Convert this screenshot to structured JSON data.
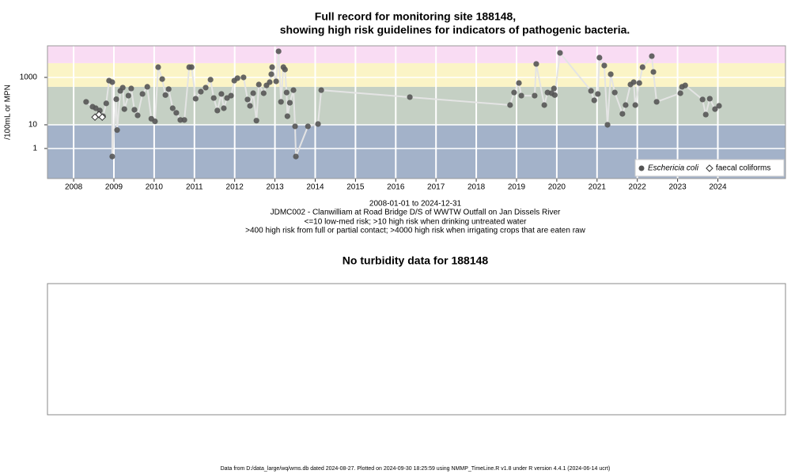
{
  "chart_data": [
    {
      "type": "scatter",
      "title": "Full record for monitoring site 188148,",
      "subtitle": "showing high risk guidelines for indicators of pathogenic bacteria.",
      "y_label": "/100mL or MPN",
      "notes": [
        "2008-01-01 to 2024-12-31",
        "JDMC002 - Clanwilliam at Road Bridge D/S of WWTW Outfall on Jan Dissels River",
        "<=10 low-med risk; >10 high risk when drinking untreated water",
        ">400 high risk from full or partial contact; >4000 high risk when irrigating crops that are eaten raw"
      ],
      "xlim": [
        2007.35,
        2025.68
      ],
      "xticks": [
        2008,
        2009,
        2010,
        2011,
        2012,
        2013,
        2014,
        2015,
        2016,
        2017,
        2018,
        2019,
        2020,
        2021,
        2022,
        2023,
        2024
      ],
      "ylim": [
        0.054,
        21500
      ],
      "yticks": [
        1,
        10,
        1000
      ],
      "y_log_scale": true,
      "grid": true,
      "band_thresholds": [
        10,
        400,
        4000
      ],
      "band_colors": [
        "#a3b2c9",
        "#c5d0c4",
        "#fbf4c6",
        "#f9dcf3"
      ],
      "legend_position": "bottom-right",
      "series": [
        {
          "name": "Eschericia coli",
          "color": "#555555",
          "line_color": "#e4e4e4",
          "marker": "filled-circle",
          "x": [
            2008.31,
            2008.47,
            2008.55,
            2008.65,
            2008.73,
            2008.81,
            2008.88,
            2008.96,
            2008.96,
            2009.06,
            2009.08,
            2009.16,
            2009.22,
            2009.26,
            2009.36,
            2009.43,
            2009.51,
            2009.59,
            2009.71,
            2009.83,
            2009.93,
            2010.02,
            2010.1,
            2010.2,
            2010.28,
            2010.36,
            2010.46,
            2010.55,
            2010.65,
            2010.75,
            2010.87,
            2010.93,
            2011.03,
            2011.16,
            2011.28,
            2011.4,
            2011.48,
            2011.57,
            2011.67,
            2011.73,
            2011.81,
            2011.91,
            2011.99,
            2012.07,
            2012.22,
            2012.32,
            2012.38,
            2012.46,
            2012.54,
            2012.6,
            2012.72,
            2012.79,
            2012.87,
            2012.91,
            2012.93,
            2013.03,
            2013.09,
            2013.15,
            2013.21,
            2013.25,
            2013.29,
            2013.31,
            2013.37,
            2013.46,
            2013.5,
            2013.52,
            2013.82,
            2014.07,
            2014.15,
            2016.35,
            2018.84,
            2018.94,
            2019.06,
            2019.12,
            2019.45,
            2019.49,
            2019.69,
            2019.77,
            2019.87,
            2019.93,
            2019.95,
            2020.08,
            2020.85,
            2020.93,
            2021.02,
            2021.06,
            2021.18,
            2021.26,
            2021.34,
            2021.44,
            2021.63,
            2021.71,
            2021.83,
            2021.91,
            2021.95,
            2022.05,
            2022.13,
            2022.36,
            2022.4,
            2022.48,
            2023.07,
            2023.11,
            2023.19,
            2023.62,
            2023.7,
            2023.8,
            2023.93,
            2024.03
          ],
          "values": [
            93,
            58,
            50,
            40,
            23,
            80,
            730,
            630,
            0.46,
            120,
            6,
            270,
            370,
            46,
            170,
            340,
            43,
            25,
            200,
            400,
            18,
            14,
            2700,
            850,
            180,
            320,
            50,
            32,
            16,
            16,
            2700,
            2700,
            126,
            250,
            370,
            800,
            135,
            40,
            200,
            50,
            135,
            170,
            730,
            930,
            1000,
            117,
            63,
            215,
            15,
            500,
            215,
            460,
            630,
            1360,
            2700,
            680,
            12600,
            93,
            2700,
            2150,
            230,
            23,
            85,
            290,
            8.6,
            0.46,
            8.6,
            10.8,
            290,
            147,
            68,
            230,
            580,
            170,
            170,
            3700,
            68,
            230,
            215,
            340,
            180,
            10800,
            270,
            108,
            200,
            6800,
            3160,
            10,
            1360,
            230,
            29,
            68,
            500,
            630,
            68,
            580,
            2700,
            7900,
            1700,
            93,
            215,
            400,
            460,
            117,
            27,
            126,
            46,
            63
          ]
        },
        {
          "name": "faecal coliforms",
          "color": "#ffffff",
          "line_color": "#e4e4e4",
          "marker": "open-diamond",
          "x": [
            2008.53,
            2008.63,
            2008.71
          ],
          "values": [
            21,
            27,
            21
          ]
        }
      ]
    },
    {
      "type": "empty",
      "title": "No turbidity data for 188148"
    }
  ],
  "footer": "Data from D:/data_large/wq/wms.db dated 2024-08-27. Plotted on 2024-09-30 18:25:59 using NMMP_TimeLine.R v1.8 under R version 4.4.1 (2024-06-14 ucrt)"
}
